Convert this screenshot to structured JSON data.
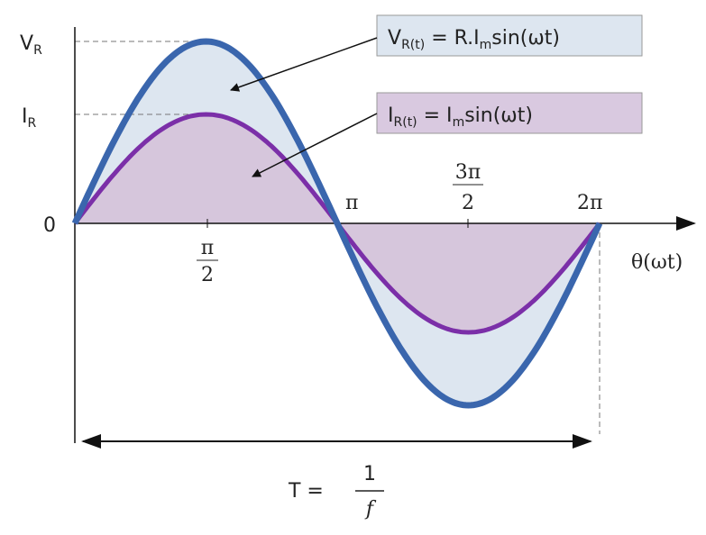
{
  "axis": {
    "y_labels": [
      {
        "main": "V",
        "sub": "R"
      },
      {
        "main": "I",
        "sub": "R"
      },
      {
        "main": "0"
      }
    ],
    "x_labels": [
      {
        "numerator": "π",
        "denominator": "2"
      },
      {
        "main": "π"
      },
      {
        "numerator": "3π",
        "denominator": "2"
      },
      {
        "main": "2π"
      }
    ],
    "x_title": "θ(ωt)"
  },
  "legend": [
    {
      "parts": [
        "V",
        "R(t)",
        " = R.I",
        "m",
        "sin(ωt)"
      ]
    },
    {
      "parts": [
        "I",
        "R(t)",
        " = I",
        "m",
        "sin(ωt)"
      ]
    }
  ],
  "period": {
    "lhs": "T =",
    "numerator": "1",
    "denominator": "f"
  }
}
